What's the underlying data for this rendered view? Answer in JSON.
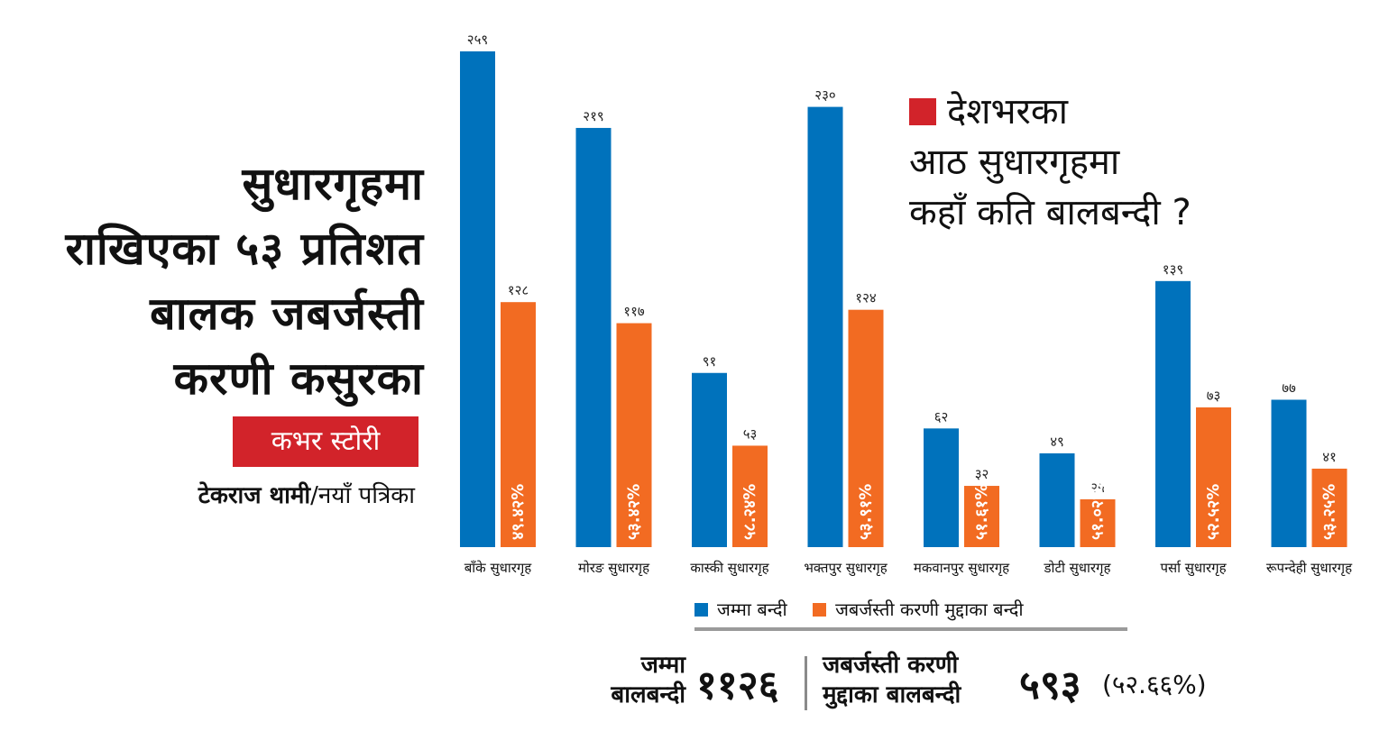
{
  "headline": [
    "सुधारगृहमा",
    "राखिएका ५३ प्रतिशत",
    "बालक जबर्जस्ती",
    "करणी कसुरका"
  ],
  "tag": "कभर स्टोरी",
  "byline": {
    "author": "टेकराज थामी",
    "outlet": "/नयाँ पत्रिका"
  },
  "question": [
    "देशभरका",
    "आठ सुधारगृहमा",
    "कहाँ कति बालबन्दी ?"
  ],
  "colors": {
    "total": "#0072bc",
    "forced": "#f26b22",
    "accent": "#d2232a"
  },
  "legend": {
    "total": "जम्मा बन्दी",
    "forced": "जबर्जस्ती करणी मुद्दाका बन्दी"
  },
  "totals": {
    "total_label": [
      "जम्मा",
      "बालबन्दी"
    ],
    "total_value": "११२६",
    "forced_label": [
      "जबर्जस्ती करणी",
      "मुद्दाका बालबन्दी"
    ],
    "forced_value": "५९३",
    "forced_pct": "(५२.६६%)"
  },
  "chart_data": {
    "type": "bar",
    "categories": [
      "बाँके सुधारगृह",
      "मोरङ सुधारगृह",
      "कास्की सुधारगृह",
      "भक्तपुर सुधारगृह",
      "मकवानपुर सुधारगृह",
      "डोटी सुधारगृह",
      "पर्सा सुधारगृह",
      "रूपन्देही सुधारगृह"
    ],
    "series": [
      {
        "name": "जम्मा बन्दी",
        "values": [
          259,
          219,
          91,
          230,
          62,
          49,
          139,
          77
        ],
        "labels": [
          "२५९",
          "२१९",
          "९१",
          "२३०",
          "६२",
          "४९",
          "१३९",
          "७७"
        ]
      },
      {
        "name": "जबर्जस्ती करणी मुद्दाका बन्दी",
        "values": [
          128,
          117,
          53,
          124,
          32,
          25,
          73,
          41
        ],
        "labels": [
          "१२८",
          "११७",
          "५३",
          "१२४",
          "३२",
          "२५",
          "७३",
          "४१"
        ],
        "percent_labels": [
          "४९.४२%",
          "५३.४२%",
          "५८.२४%",
          "५३.९१%",
          "५१.६१%",
          "५१.०२%",
          "५२.५२%",
          "५३.२५%"
        ]
      }
    ],
    "ylim": [
      0,
      259
    ]
  }
}
